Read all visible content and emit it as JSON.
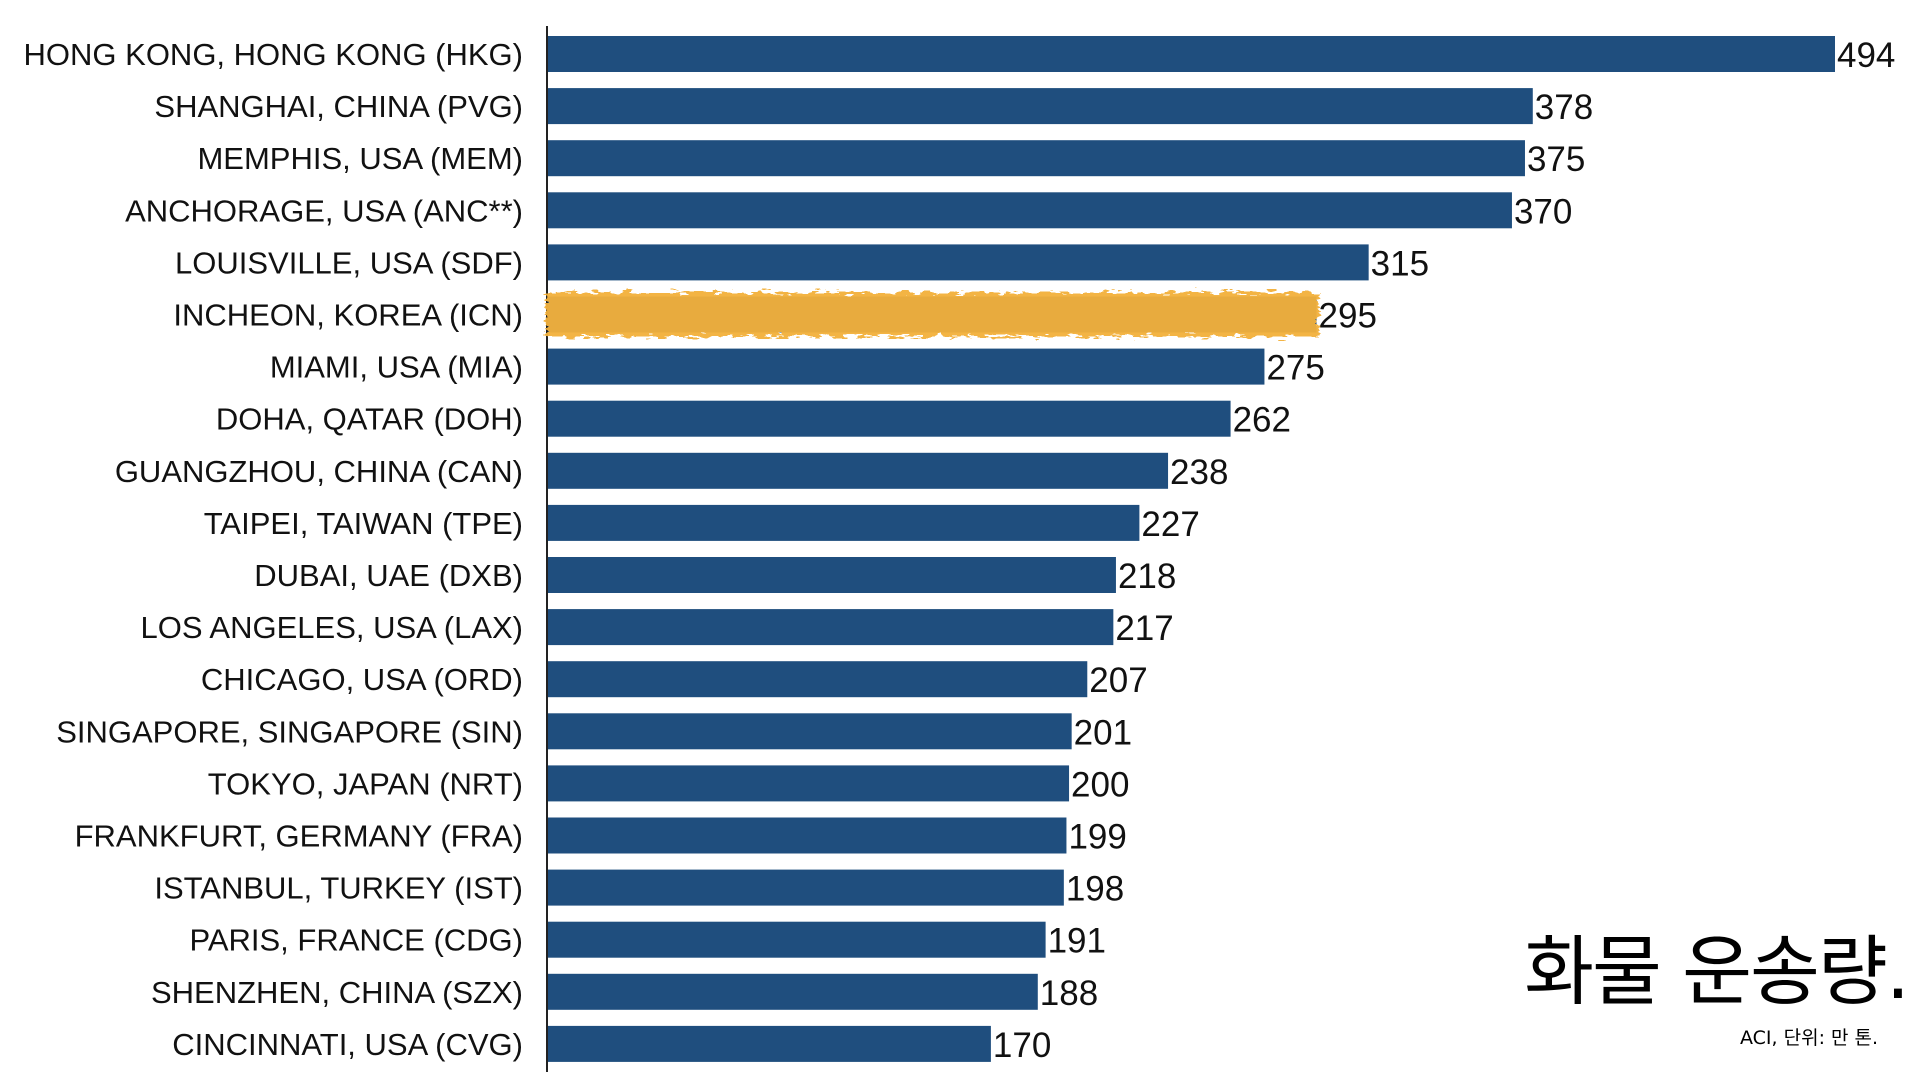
{
  "chart_data": {
    "type": "bar",
    "orientation": "horizontal",
    "categories": [
      "HONG KONG, HONG KONG (HKG)",
      "SHANGHAI, CHINA (PVG)",
      "MEMPHIS, USA (MEM)",
      "ANCHORAGE, USA (ANC**)",
      "LOUISVILLE, USA (SDF)",
      "INCHEON, KOREA (ICN)",
      "MIAMI, USA (MIA)",
      "DOHA, QATAR (DOH)",
      "GUANGZHOU, CHINA (CAN)",
      "TAIPEI, TAIWAN (TPE)",
      "DUBAI, UAE (DXB)",
      "LOS ANGELES, USA (LAX)",
      "CHICAGO, USA (ORD)",
      "SINGAPORE, SINGAPORE (SIN)",
      "TOKYO, JAPAN (NRT)",
      "FRANKFURT, GERMANY (FRA)",
      "ISTANBUL, TURKEY (IST)",
      "PARIS, FRANCE (CDG)",
      "SHENZHEN, CHINA (SZX)",
      "CINCINNATI, USA (CVG)"
    ],
    "values": [
      494,
      378,
      375,
      370,
      315,
      295,
      275,
      262,
      238,
      227,
      218,
      217,
      207,
      201,
      200,
      199,
      198,
      191,
      188,
      170
    ],
    "highlight_index": 5,
    "bar_color": "#1f4e7e",
    "highlight_color": "#f3b13b",
    "xlim": [
      0,
      494
    ],
    "grid": false,
    "legend": "none",
    "caption": "화물 운송량.",
    "source_note": "ACI, 단위: 만 톤."
  }
}
